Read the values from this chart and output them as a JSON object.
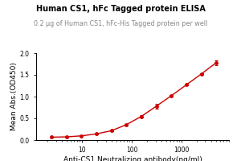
{
  "title": "Human CS1, hFc Tagged protein ELISA",
  "subtitle": "0.2 μg of Human CS1, hFc-His Tagged protein per well",
  "xlabel": "Anti-CS1 Neutralizing antibody(ng/ml)",
  "ylabel": "Mean Abs.(OD450)",
  "x": [
    2.44,
    4.88,
    9.77,
    19.53,
    39.06,
    78.13,
    156.25,
    312.5,
    625,
    1250,
    2500,
    5000
  ],
  "y": [
    0.067,
    0.074,
    0.097,
    0.142,
    0.215,
    0.355,
    0.545,
    0.78,
    1.02,
    1.27,
    1.52,
    1.78
  ],
  "yerr": [
    0.005,
    0.005,
    0.008,
    0.01,
    0.015,
    0.018,
    0.02,
    0.055,
    0.015,
    0.015,
    0.02,
    0.05
  ],
  "color": "#CC0000",
  "ylim": [
    0.0,
    2.0
  ],
  "yticks": [
    0.0,
    0.5,
    1.0,
    1.5,
    2.0
  ],
  "title_fontsize": 7.0,
  "subtitle_fontsize": 5.8,
  "axis_fontsize": 6.5,
  "tick_fontsize": 5.5,
  "title_color": "#000000",
  "subtitle_color": "#888888"
}
